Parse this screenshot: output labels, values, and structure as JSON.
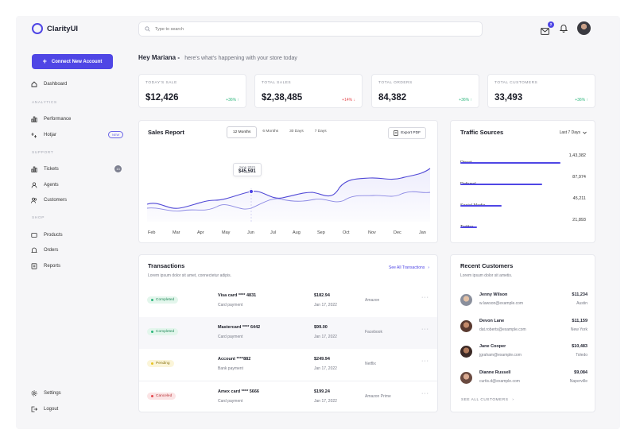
{
  "app": {
    "name": "ClarityUI"
  },
  "search": {
    "placeholder": "Type to search"
  },
  "header": {
    "message_count": "2"
  },
  "sidebar": {
    "cta_label": "Connect New Account",
    "dashboard": "Dashboard",
    "sections": {
      "analytics": "ANALYTICS",
      "support": "SUPPORT",
      "shop": "SHOP"
    },
    "analytics_items": [
      "Performance",
      "Hotjar"
    ],
    "hotjar_badge": "NEW",
    "support_items": [
      "Tickets",
      "Agents",
      "Customers"
    ],
    "tickets_count": "13",
    "shop_items": [
      "Products",
      "Orders",
      "Reports"
    ],
    "footer_items": [
      "Settings",
      "Logout"
    ]
  },
  "greeting": {
    "title": "Hey Mariana -",
    "subtitle": "here's what's happening with your store today"
  },
  "stats": [
    {
      "label": "TODAY'S SALE",
      "value": "$12,426",
      "change": "+36% ↑",
      "trend": "up"
    },
    {
      "label": "TOTAL SALES",
      "value": "$2,38,485",
      "change": "+14% ↓",
      "trend": "down"
    },
    {
      "label": "TOTAL ORDERS",
      "value": "84,382",
      "change": "+36% ↑",
      "trend": "up"
    },
    {
      "label": "TOTAL CUSTOMERS",
      "value": "33,493",
      "change": "+36% ↑",
      "trend": "up"
    }
  ],
  "sales_report": {
    "title": "Sales Report",
    "ranges": [
      "12 Months",
      "6 Months",
      "30 Days",
      "7 Days"
    ],
    "active_range": "12 Months",
    "export_label": "Export PDF",
    "tooltip": {
      "date": "June 2021",
      "value": "$45,591"
    },
    "months": [
      "Feb",
      "Mar",
      "Apr",
      "May",
      "Jun",
      "Jul",
      "Aug",
      "Sep",
      "Oct",
      "Nov",
      "Dec",
      "Jan"
    ]
  },
  "traffic": {
    "title": "Traffic Sources",
    "period": "Last 7 Days",
    "sources": [
      {
        "name": "Direct",
        "value": "1,43,382",
        "share": 0.8
      },
      {
        "name": "Referral",
        "value": "87,974",
        "share": 0.65
      },
      {
        "name": "Social Media",
        "value": "45,211",
        "share": 0.33
      },
      {
        "name": "Twitter",
        "value": "21,893",
        "share": 0.13
      }
    ],
    "accent": "#4f46e5"
  },
  "transactions": {
    "title": "Transactions",
    "subtitle": "Lorem ipsum dolor sit amet, connectetur adipis.",
    "link": "See All Transactions",
    "rows": [
      {
        "status": "Completed",
        "card": "Visa card **** 4831",
        "type": "Card payment",
        "amount": "$182.94",
        "date": "Jan 17, 2022",
        "merchant": "Amazon"
      },
      {
        "status": "Completed",
        "card": "Mastercard **** 6442",
        "type": "Card payment",
        "amount": "$99.00",
        "date": "Jan 17, 2022",
        "merchant": "Facebook"
      },
      {
        "status": "Pending",
        "card": "Account ****882",
        "type": "Bank payment",
        "amount": "$249.94",
        "date": "Jan 17, 2022",
        "merchant": "Netflix"
      },
      {
        "status": "Canceled",
        "card": "Amex card **** 5666",
        "type": "Card payment",
        "amount": "$199.24",
        "date": "Jan 17, 2022",
        "merchant": "Amazon Prime"
      }
    ]
  },
  "customers": {
    "title": "Recent Customers",
    "subtitle": "Lorem ipsum dolor sit ametis.",
    "link": "SEE ALL CUSTOMERS",
    "rows": [
      {
        "name": "Jenny Wilson",
        "email": "w.lawson@example.com",
        "amount": "$11,234",
        "city": "Austin"
      },
      {
        "name": "Devon Lane",
        "email": "dat.roberts@example.com",
        "amount": "$11,159",
        "city": "New York"
      },
      {
        "name": "Jane Cooper",
        "email": "jgraham@example.com",
        "amount": "$10,483",
        "city": "Toledo"
      },
      {
        "name": "Dianne Russell",
        "email": "curtis.d@example.com",
        "amount": "$9,084",
        "city": "Naperville"
      }
    ]
  }
}
